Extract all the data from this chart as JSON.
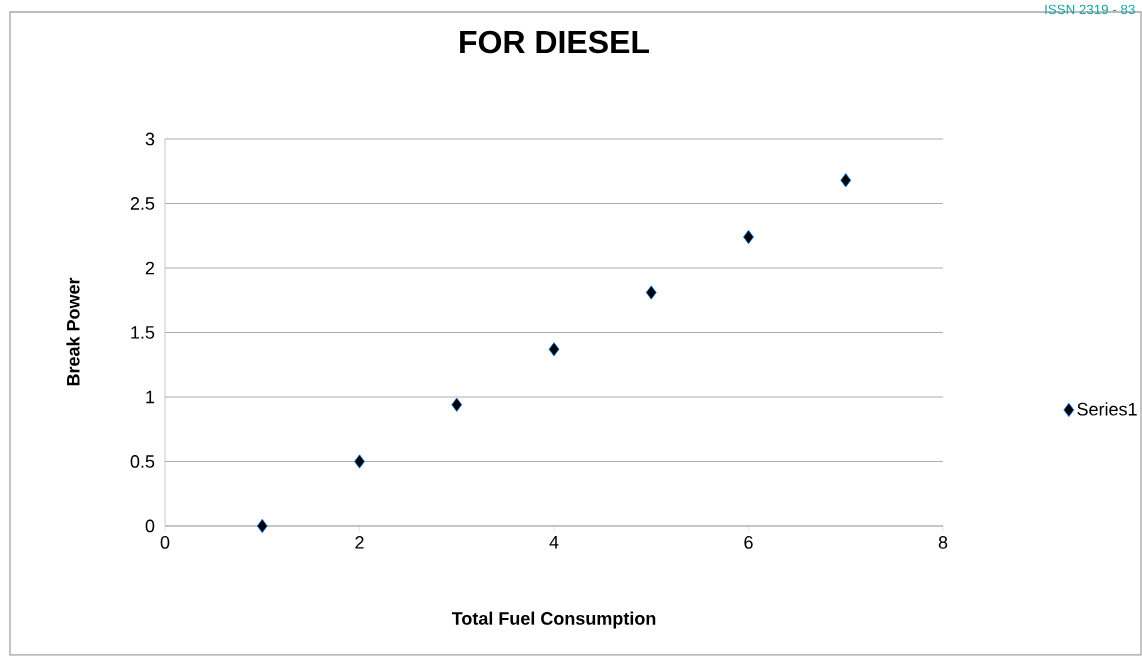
{
  "chart_data": {
    "type": "scatter",
    "title": "FOR DIESEL",
    "xlabel": "Total Fuel Consumption",
    "ylabel": "Break Power",
    "x": [
      1,
      2,
      3,
      4,
      5,
      6,
      7
    ],
    "series": [
      {
        "name": "Series1",
        "color": "#000000",
        "values": [
          0,
          0.5,
          0.94,
          1.37,
          1.81,
          2.24,
          2.68
        ]
      }
    ],
    "xlim": [
      0,
      8
    ],
    "ylim": [
      0,
      3
    ],
    "xticks": [
      0,
      2,
      4,
      6,
      8
    ],
    "yticks": [
      0,
      0.5,
      1,
      1.5,
      2,
      2.5,
      3
    ],
    "grid": "y",
    "legend": "right",
    "marker": "diamond",
    "annotations": [
      "ISSN 2319 - 83"
    ]
  }
}
